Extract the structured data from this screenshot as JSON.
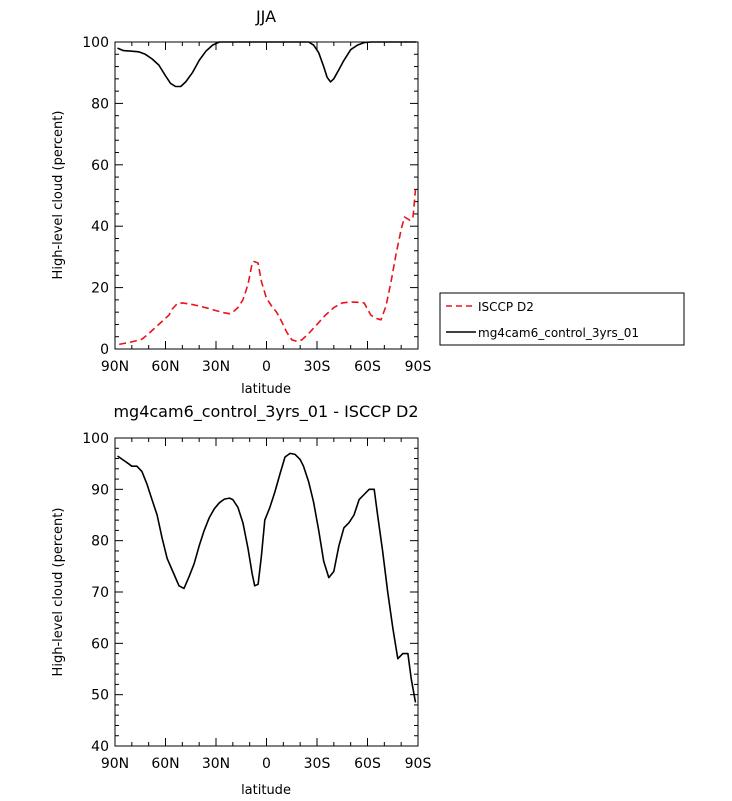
{
  "chart_data": [
    {
      "type": "line",
      "title": "JJA",
      "xlabel": "latitude",
      "ylabel": "High-level cloud (percent)",
      "xlim": [
        90,
        -90
      ],
      "ylim": [
        0,
        100
      ],
      "x_ticks": [
        90,
        60,
        30,
        0,
        -30,
        -60,
        -90
      ],
      "x_tick_labels": [
        "90N",
        "60N",
        "30N",
        "0",
        "30S",
        "60S",
        "90S"
      ],
      "y_ticks": [
        0,
        20,
        40,
        60,
        80,
        100
      ],
      "y_tick_labels": [
        "0",
        "20",
        "40",
        "60",
        "80",
        "100"
      ],
      "legend_position": "right",
      "series": [
        {
          "name": "ISCCP D2",
          "color": "#e8141c",
          "style": "dashed",
          "x": [
            87.5,
            85,
            82,
            78,
            74,
            70,
            67,
            64,
            62,
            60,
            58,
            56,
            53,
            50,
            45,
            40,
            35,
            30,
            25,
            22,
            20,
            17,
            14,
            11,
            8.5,
            7.5,
            5,
            3,
            0,
            -3,
            -6,
            -9,
            -12,
            -15,
            -18,
            -21,
            -25,
            -30,
            -35,
            -40,
            -45,
            -50,
            -55,
            -58,
            -62,
            -65,
            -68,
            -71,
            -74,
            -77,
            -80,
            -82,
            -85,
            -87,
            -88.5
          ],
          "y": [
            1.5,
            1.8,
            2.1,
            2.6,
            3.2,
            5,
            6.5,
            8,
            9,
            10,
            11,
            13,
            14.8,
            15,
            14.6,
            14,
            13.3,
            12.5,
            11.8,
            11.5,
            12,
            13.5,
            16,
            21,
            28,
            28.5,
            28,
            22,
            16.5,
            14,
            12,
            9,
            5.5,
            3,
            2.5,
            3,
            5,
            8,
            11,
            13.5,
            15,
            15.3,
            15.2,
            15,
            11,
            10,
            9.5,
            14,
            22,
            31,
            39,
            43,
            42,
            42.5,
            52
          ]
        },
        {
          "name": "mg4cam6_control_3yrs_01",
          "color": "#000000",
          "style": "solid",
          "x": [
            88.5,
            85,
            80,
            76,
            72,
            68,
            64,
            60,
            57,
            54,
            51,
            48,
            44,
            40,
            36,
            32,
            28,
            25,
            20,
            0,
            -20,
            -25,
            -28,
            -31,
            -34,
            -36,
            -38,
            -40,
            -43,
            -46,
            -50,
            -54,
            -58,
            -62,
            -65,
            -70,
            -89
          ],
          "y": [
            98,
            97.2,
            97,
            96.8,
            96,
            94.5,
            92.5,
            89,
            86.5,
            85.5,
            85.5,
            87,
            90,
            94,
            97,
            99,
            100,
            100,
            100,
            100,
            100,
            100,
            99,
            96.5,
            92,
            88.5,
            87,
            88,
            91,
            94,
            97.5,
            99,
            99.8,
            100,
            100,
            100,
            100
          ]
        }
      ]
    },
    {
      "type": "line",
      "title": "mg4cam6_control_3yrs_01 - ISCCP D2",
      "xlabel": "latitude",
      "ylabel": "High-level cloud (percent)",
      "xlim": [
        90,
        -90
      ],
      "ylim": [
        40,
        100
      ],
      "x_ticks": [
        90,
        60,
        30,
        0,
        -30,
        -60,
        -90
      ],
      "x_tick_labels": [
        "90N",
        "60N",
        "30N",
        "0",
        "30S",
        "60S",
        "90S"
      ],
      "y_ticks": [
        40,
        50,
        60,
        70,
        80,
        90,
        100
      ],
      "y_tick_labels": [
        "40",
        "50",
        "60",
        "70",
        "80",
        "90",
        "100"
      ],
      "series": [
        {
          "color": "#000000",
          "style": "solid",
          "x": [
            88.5,
            85,
            82,
            80,
            77,
            74,
            71,
            68,
            65,
            62,
            59,
            55,
            52,
            49,
            46,
            43,
            40,
            37,
            34,
            31,
            28,
            25,
            22,
            20,
            17,
            14,
            11,
            8.5,
            7,
            5,
            3,
            1,
            -2,
            -5,
            -8,
            -11,
            -14,
            -17,
            -20,
            -22,
            -25,
            -28,
            -31,
            -34,
            -37,
            -40,
            -43,
            -46,
            -49,
            -52,
            -55,
            -58,
            -61,
            -64,
            -66,
            -69,
            -72,
            -75,
            -78,
            -81,
            -84,
            -86,
            -88.5
          ],
          "y": [
            96.5,
            95.7,
            95,
            94.5,
            94.5,
            93.5,
            91,
            88,
            85,
            80.5,
            76.5,
            73.5,
            71.2,
            70.7,
            73,
            75.5,
            79,
            82,
            84.5,
            86.2,
            87.4,
            88.1,
            88.3,
            88,
            86.5,
            83.5,
            78.5,
            73.5,
            71.2,
            71.5,
            77,
            84,
            86.5,
            89.5,
            93,
            96.3,
            97,
            96.8,
            95.8,
            94.5,
            91.5,
            87.5,
            82,
            76,
            72.8,
            74,
            79,
            82.5,
            83.5,
            85,
            88,
            89,
            90,
            90,
            85,
            78,
            70,
            63,
            57,
            58,
            58,
            53,
            48.5
          ]
        }
      ]
    }
  ]
}
